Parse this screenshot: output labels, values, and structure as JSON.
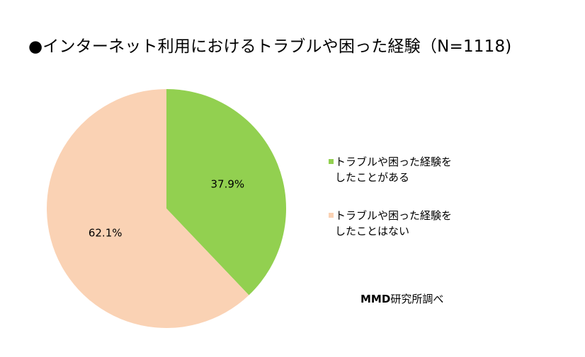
{
  "title": "●インターネット利用におけるトラブルや困った経験（N=1118)",
  "chart_data": {
    "type": "pie",
    "title": "●インターネット利用におけるトラブルや困った経験（N=1118)",
    "n": 1118,
    "slices": [
      {
        "label_line1": "トラブルや困った経験を",
        "label_line2": "したことがある",
        "value": 37.9,
        "value_label": "37.9%",
        "color": "#92d050"
      },
      {
        "label_line1": "トラブルや困った経験を",
        "label_line2": "したことはない",
        "value": 62.1,
        "value_label": "62.1%",
        "color": "#fad2b4"
      }
    ],
    "legend_position": "right"
  },
  "source": {
    "brand": "MMD",
    "text": "研究所調べ"
  }
}
